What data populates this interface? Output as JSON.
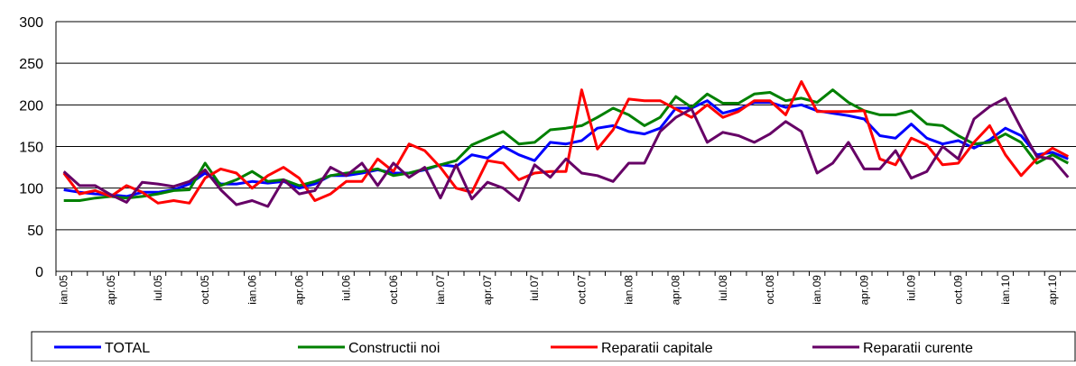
{
  "chart_data": {
    "type": "line",
    "categories": [
      "ian.05",
      null,
      null,
      "apr.05",
      null,
      null,
      "iul.05",
      null,
      null,
      "oct.05",
      null,
      null,
      "ian.06",
      null,
      null,
      "apr.06",
      null,
      null,
      "iul.06",
      null,
      null,
      "oct.06",
      null,
      null,
      "ian.07",
      null,
      null,
      "apr.07",
      null,
      null,
      "iul.07",
      null,
      null,
      "oct.07",
      null,
      null,
      "ian.08",
      null,
      null,
      "apr.08",
      null,
      null,
      "iul.08",
      null,
      null,
      "oct.08",
      null,
      null,
      "ian.09",
      null,
      null,
      "apr.09",
      null,
      null,
      "iul.09",
      null,
      null,
      "oct.09",
      null,
      null,
      "ian.10",
      null,
      null,
      "apr.10",
      null
    ],
    "series": [
      {
        "name": "TOTAL",
        "color": "#0000ff",
        "values": [
          98,
          95,
          93,
          92,
          90,
          95,
          95,
          98,
          105,
          118,
          105,
          105,
          108,
          106,
          108,
          100,
          105,
          115,
          115,
          118,
          122,
          118,
          118,
          122,
          128,
          126,
          140,
          136,
          150,
          140,
          133,
          155,
          153,
          157,
          172,
          175,
          168,
          165,
          172,
          196,
          196,
          205,
          190,
          195,
          203,
          203,
          197,
          200,
          193,
          190,
          187,
          183,
          163,
          160,
          177,
          160,
          153,
          157,
          148,
          158,
          172,
          163,
          140,
          143,
          135
        ]
      },
      {
        "name": "Constructii noi",
        "color": "#008000",
        "values": [
          85,
          85,
          88,
          90,
          88,
          90,
          93,
          97,
          98,
          130,
          103,
          110,
          120,
          108,
          110,
          103,
          108,
          115,
          118,
          120,
          123,
          115,
          118,
          123,
          128,
          133,
          152,
          160,
          168,
          153,
          155,
          170,
          172,
          175,
          185,
          196,
          188,
          175,
          185,
          210,
          197,
          213,
          202,
          202,
          213,
          215,
          205,
          208,
          203,
          218,
          203,
          193,
          188,
          188,
          193,
          177,
          175,
          163,
          153,
          155,
          165,
          155,
          130,
          140,
          130
        ]
      },
      {
        "name": "Reparatii capitale",
        "color": "#ff0000",
        "values": [
          118,
          93,
          97,
          90,
          103,
          95,
          82,
          85,
          82,
          112,
          123,
          118,
          100,
          115,
          125,
          112,
          85,
          93,
          108,
          108,
          135,
          120,
          153,
          145,
          125,
          100,
          95,
          133,
          130,
          110,
          118,
          120,
          120,
          218,
          147,
          170,
          207,
          205,
          205,
          195,
          185,
          200,
          185,
          192,
          205,
          205,
          188,
          228,
          192,
          192,
          192,
          193,
          135,
          128,
          160,
          152,
          128,
          130,
          155,
          175,
          140,
          115,
          135,
          148,
          138
        ]
      },
      {
        "name": "Reparatii curente",
        "color": "#660066",
        "values": [
          120,
          103,
          103,
          92,
          83,
          107,
          105,
          102,
          108,
          122,
          98,
          80,
          85,
          78,
          110,
          93,
          97,
          125,
          115,
          130,
          103,
          130,
          113,
          125,
          88,
          128,
          87,
          107,
          100,
          85,
          128,
          113,
          135,
          118,
          115,
          108,
          130,
          130,
          168,
          185,
          195,
          155,
          167,
          163,
          155,
          165,
          180,
          168,
          118,
          130,
          155,
          123,
          123,
          145,
          112,
          120,
          150,
          135,
          183,
          198,
          208,
          172,
          138,
          135,
          113
        ]
      }
    ],
    "ylim": [
      0,
      300
    ],
    "yticks": [
      0,
      50,
      100,
      150,
      200,
      250,
      300
    ],
    "grid": true
  }
}
